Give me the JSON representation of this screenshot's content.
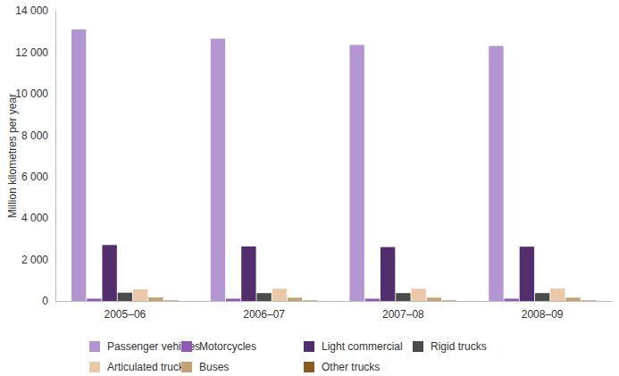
{
  "chart_data": {
    "type": "bar",
    "y_label": "Million kilometres per year",
    "categories": [
      "2005–06",
      "2006–07",
      "2007–08",
      "2008–09"
    ],
    "series": [
      {
        "name": "Passenger vehicles",
        "color": "#b396d1",
        "values": [
          13100,
          12650,
          12350,
          12300
        ]
      },
      {
        "name": "Motorcycles",
        "color": "#9156b8",
        "values": [
          110,
          110,
          110,
          110
        ]
      },
      {
        "name": "Light commercial",
        "color": "#532e6e",
        "values": [
          2700,
          2630,
          2600,
          2620
        ]
      },
      {
        "name": "Rigid trucks",
        "color": "#4b4b4b",
        "values": [
          400,
          380,
          380,
          380
        ]
      },
      {
        "name": "Articulated trucks",
        "color": "#ebc9a8",
        "values": [
          560,
          590,
          590,
          600
        ]
      },
      {
        "name": "Buses",
        "color": "#c4a274",
        "values": [
          170,
          160,
          160,
          160
        ]
      },
      {
        "name": "Other trucks",
        "color": "#8a5a1f",
        "values": [
          20,
          20,
          20,
          20
        ]
      }
    ],
    "ylim": [
      0,
      14000
    ],
    "yticks": [
      0,
      {
        "value": 2000,
        "label": "2 000"
      },
      {
        "value": 4000,
        "label": "4 000"
      },
      {
        "value": 6000,
        "label": "6 000"
      },
      {
        "value": 8000,
        "label": "8 000"
      },
      {
        "value": 10000,
        "label": "10 000"
      },
      {
        "value": 12000,
        "label": "12 000"
      },
      {
        "value": 14000,
        "label": "14 000"
      }
    ],
    "grid": false,
    "legend": "bottom"
  }
}
